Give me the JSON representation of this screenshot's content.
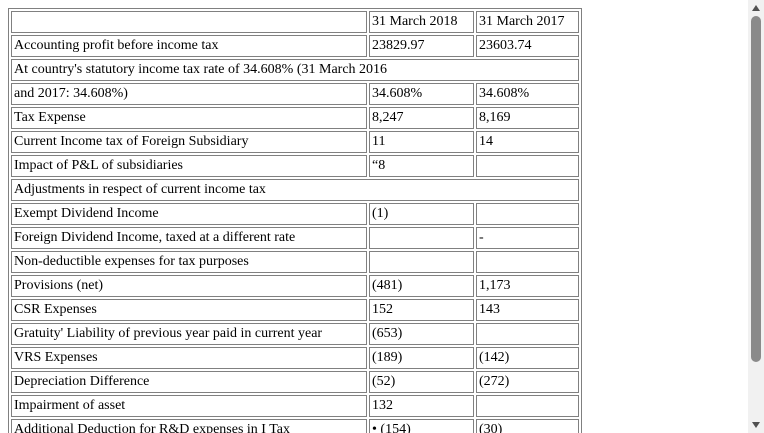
{
  "table": {
    "header": [
      "",
      "31 March 2018",
      "31 March 2017"
    ],
    "rows": [
      [
        "Accounting profit before income tax",
        "23829.97",
        "23603.74"
      ],
      [
        "At country's statutory income tax rate of 34.608% (31 March 2016"
      ],
      [
        "and 2017: 34.608%)",
        "34.608%",
        "34.608%"
      ],
      [
        "Tax Expense",
        "8,247",
        "8,169"
      ],
      [
        "Current Income tax of Foreign Subsidiary",
        "11",
        "14"
      ],
      [
        "Impact of P&L of subsidiaries",
        "“8",
        ""
      ],
      [
        "Adjustments in respect of current income tax"
      ],
      [
        "Exempt Dividend Income",
        "(1)",
        ""
      ],
      [
        "Foreign Dividend Income, taxed at a different rate",
        "",
        "-"
      ],
      [
        "Non-deductible expenses for tax purposes",
        "",
        ""
      ],
      [
        "Provisions (net)",
        "(481)",
        "1,173"
      ],
      [
        "CSR Expenses",
        "152",
        "143"
      ],
      [
        "Gratuity' Liability of previous year paid in current year",
        "(653)",
        ""
      ],
      [
        "VRS Expenses",
        "(189)",
        "(142)"
      ],
      [
        "Depreciation Difference",
        "(52)",
        "(272)"
      ],
      [
        "Impairment of asset",
        "132",
        ""
      ],
      [
        "Additional Deduction for R&D expenses in I Tax",
        "• (154)",
        "(30)"
      ]
    ]
  },
  "scrollbar": {
    "up_icon": "triangle-up-icon",
    "down_icon": "triangle-down-icon"
  }
}
